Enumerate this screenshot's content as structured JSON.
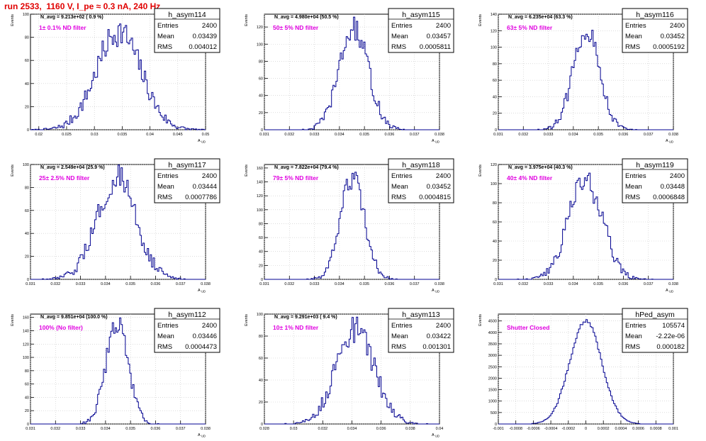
{
  "page_title": "run 2533,  1160 V, I_pe ≈ 0.3 nA, 240 Hz",
  "colors": {
    "title": "#e00000",
    "annotation": "#e000e0",
    "histogram": "#000090",
    "frame": "#000000"
  },
  "chart_data": [
    {
      "type": "histogram",
      "name": "h_asym114",
      "top_label": "N_avg = 9.213e+02 ( 0.9 %)",
      "filter_label": "1± 0.1% ND filter",
      "stats": {
        "entries": "2400",
        "mean": "0.03439",
        "rms": "0.004012"
      },
      "ylabel": "Events",
      "xlabel": "A_UD",
      "xlim": [
        0.0185,
        0.05
      ],
      "ylim": [
        0,
        100
      ],
      "xticks": [
        "0.02",
        "0.025",
        "0.03",
        "0.035",
        "0.04",
        "0.045",
        "0.05"
      ],
      "yticks": [
        "0",
        "20",
        "40",
        "60",
        "80",
        "100"
      ],
      "grid": true,
      "center": 0.03439,
      "sigma": 0.004012,
      "peak": 85
    },
    {
      "type": "histogram",
      "name": "h_asym115",
      "top_label": "N_avg = 4.980e+04 (50.5 %)",
      "filter_label": "50± 5% ND filter",
      "stats": {
        "entries": "2400",
        "mean": "0.03457",
        "rms": "0.0005811"
      },
      "ylabel": "Events",
      "xlabel": "A_UD",
      "xlim": [
        0.031,
        0.038
      ],
      "ylim": [
        0,
        135
      ],
      "xticks": [
        "0.031",
        "0.032",
        "0.033",
        "0.034",
        "0.035",
        "0.036",
        "0.037",
        "0.038"
      ],
      "yticks": [
        "0",
        "20",
        "40",
        "60",
        "80",
        "100",
        "120"
      ],
      "grid": true,
      "center": 0.03457,
      "sigma": 0.0005811,
      "peak": 118
    },
    {
      "type": "histogram",
      "name": "h_asym116",
      "top_label": "N_avg = 6.235e+04 (63.3 %)",
      "filter_label": "63± 5% ND filter",
      "stats": {
        "entries": "2400",
        "mean": "0.03452",
        "rms": "0.0005192"
      },
      "ylabel": "Events",
      "xlabel": "A_UD",
      "xlim": [
        0.031,
        0.038
      ],
      "ylim": [
        0,
        140
      ],
      "xticks": [
        "0.031",
        "0.032",
        "0.033",
        "0.034",
        "0.035",
        "0.036",
        "0.037",
        "0.038"
      ],
      "yticks": [
        "0",
        "20",
        "40",
        "60",
        "80",
        "100",
        "120",
        "140"
      ],
      "grid": true,
      "center": 0.03452,
      "sigma": 0.0005192,
      "peak": 125
    },
    {
      "type": "histogram",
      "name": "h_asym117",
      "top_label": "N_avg = 2.549e+04 (25.9 %)",
      "filter_label": "25± 2.5% ND filter",
      "stats": {
        "entries": "2400",
        "mean": "0.03444",
        "rms": "0.0007786"
      },
      "ylabel": "Events",
      "xlabel": "A_UD",
      "xlim": [
        0.031,
        0.038
      ],
      "ylim": [
        0,
        100
      ],
      "xticks": [
        "0.031",
        "0.032",
        "0.033",
        "0.034",
        "0.035",
        "0.036",
        "0.037",
        "0.038"
      ],
      "yticks": [
        "0",
        "20",
        "40",
        "60",
        "80",
        "100"
      ],
      "grid": true,
      "center": 0.03444,
      "sigma": 0.0007786,
      "peak": 88
    },
    {
      "type": "histogram",
      "name": "h_asym118",
      "top_label": "N_avg = 7.822e+04 (79.4 %)",
      "filter_label": "79± 5% ND filter",
      "stats": {
        "entries": "2400",
        "mean": "0.03452",
        "rms": "0.0004815"
      },
      "ylabel": "Events",
      "xlabel": "A_UD",
      "xlim": [
        0.031,
        0.038
      ],
      "ylim": [
        0,
        165
      ],
      "xticks": [
        "0.031",
        "0.032",
        "0.033",
        "0.034",
        "0.035",
        "0.036",
        "0.037",
        "0.038"
      ],
      "yticks": [
        "0",
        "20",
        "40",
        "60",
        "80",
        "100",
        "120",
        "140",
        "160"
      ],
      "grid": true,
      "center": 0.03452,
      "sigma": 0.0004815,
      "peak": 145
    },
    {
      "type": "histogram",
      "name": "h_asym119",
      "top_label": "N_avg = 3.975e+04 (40.3 %)",
      "filter_label": "40± 4% ND filter",
      "stats": {
        "entries": "2400",
        "mean": "0.03448",
        "rms": "0.0006848"
      },
      "ylabel": "Events",
      "xlabel": "A_UD",
      "xlim": [
        0.031,
        0.038
      ],
      "ylim": [
        0,
        120
      ],
      "xticks": [
        "0.031",
        "0.032",
        "0.033",
        "0.034",
        "0.035",
        "0.036",
        "0.037",
        "0.038"
      ],
      "yticks": [
        "0",
        "20",
        "40",
        "60",
        "80",
        "100",
        "120"
      ],
      "grid": true,
      "center": 0.03448,
      "sigma": 0.0006848,
      "peak": 104
    },
    {
      "type": "histogram",
      "name": "h_asym112",
      "top_label": "N_avg = 9.851e+04 (100.0 %)",
      "filter_label": "100% (No filter)",
      "stats": {
        "entries": "2400",
        "mean": "0.03446",
        "rms": "0.0004473"
      },
      "ylabel": "Events",
      "xlabel": "A_UD",
      "xlim": [
        0.031,
        0.038
      ],
      "ylim": [
        0,
        165
      ],
      "xticks": [
        "0.031",
        "0.032",
        "0.033",
        "0.034",
        "0.035",
        "0.036",
        "0.037",
        "0.038"
      ],
      "yticks": [
        "0",
        "20",
        "40",
        "60",
        "80",
        "100",
        "120",
        "140",
        "160"
      ],
      "grid": true,
      "center": 0.03446,
      "sigma": 0.0004473,
      "peak": 152
    },
    {
      "type": "histogram",
      "name": "h_asym113",
      "top_label": "N_avg = 9.291e+03 ( 9.4 %)",
      "filter_label": "10± 1% ND filter",
      "stats": {
        "entries": "2400",
        "mean": "0.03422",
        "rms": "0.001301"
      },
      "ylabel": "Events",
      "xlabel": "A_UD",
      "xlim": [
        0.028,
        0.04
      ],
      "ylim": [
        0,
        100
      ],
      "xticks": [
        "0.028",
        "0.03",
        "0.032",
        "0.034",
        "0.036",
        "0.038",
        "0.04"
      ],
      "yticks": [
        "0",
        "20",
        "40",
        "60",
        "80",
        "100"
      ],
      "grid": true,
      "center": 0.03422,
      "sigma": 0.001301,
      "peak": 85
    },
    {
      "type": "histogram",
      "name": "hPed_asym",
      "top_label": "",
      "filter_label": "Shutter Closed",
      "stats": {
        "entries": "105574",
        "mean": "-2.22e-06",
        "rms": "0.000182"
      },
      "ylabel": "Events",
      "xlabel": "",
      "xlim": [
        -0.001,
        0.001
      ],
      "ylim": [
        0,
        4800
      ],
      "xticks": [
        "-0.001",
        "-0.0008",
        "-0.0006",
        "-0.0004",
        "-0.0002",
        "0",
        "0.0002",
        "0.0004",
        "0.0006",
        "0.0008",
        "0.001"
      ],
      "yticks": [
        "0",
        "500",
        "1000",
        "1500",
        "2000",
        "2500",
        "3000",
        "3500",
        "4000",
        "4500"
      ],
      "grid": true,
      "center": -2.2e-06,
      "sigma": 0.000182,
      "peak": 4520
    }
  ]
}
